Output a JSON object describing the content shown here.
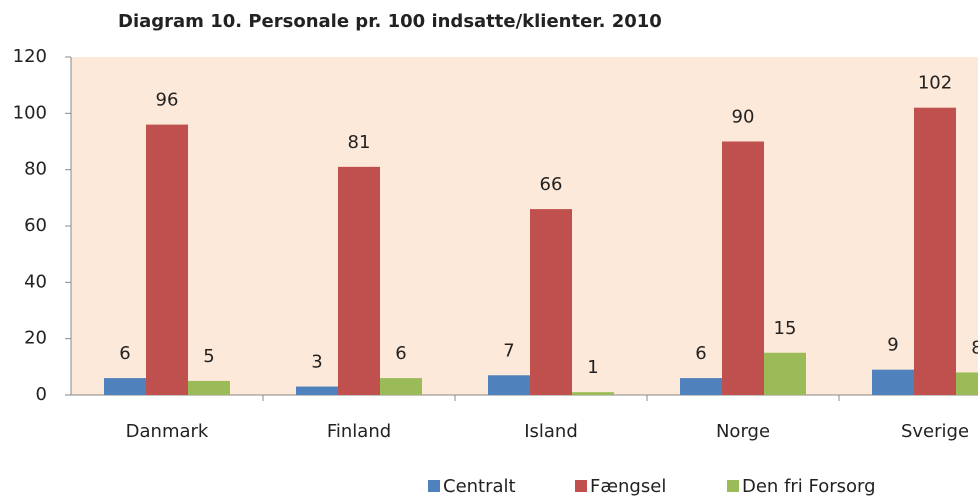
{
  "chart_data": {
    "type": "bar",
    "title": "Diagram 10. Personale pr. 100 indsatte/klienter. 2010",
    "categories": [
      "Danmark",
      "Finland",
      "Island",
      "Norge",
      "Sverige"
    ],
    "series": [
      {
        "name": "Centralt",
        "color": "#4f81bd",
        "values": [
          6,
          3,
          7,
          6,
          9
        ]
      },
      {
        "name": "Fængsel",
        "color": "#c0504d",
        "values": [
          96,
          81,
          66,
          90,
          102
        ]
      },
      {
        "name": "Den fri Forsorg",
        "color": "#9bbb59",
        "values": [
          5,
          6,
          1,
          15,
          8
        ]
      }
    ],
    "ylim": [
      0,
      120
    ],
    "yticks": [
      0,
      20,
      40,
      60,
      80,
      100,
      120
    ],
    "legend": "bottom",
    "plot_background": "#fde9d9"
  }
}
